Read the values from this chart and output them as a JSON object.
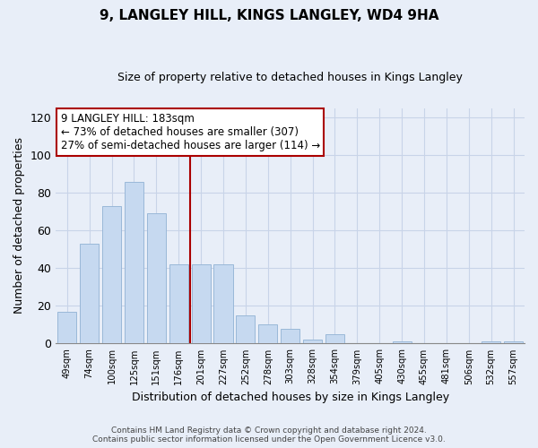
{
  "title": "9, LANGLEY HILL, KINGS LANGLEY, WD4 9HA",
  "subtitle": "Size of property relative to detached houses in Kings Langley",
  "xlabel": "Distribution of detached houses by size in Kings Langley",
  "ylabel": "Number of detached properties",
  "bar_labels": [
    "49sqm",
    "74sqm",
    "100sqm",
    "125sqm",
    "151sqm",
    "176sqm",
    "201sqm",
    "227sqm",
    "252sqm",
    "278sqm",
    "303sqm",
    "328sqm",
    "354sqm",
    "379sqm",
    "405sqm",
    "430sqm",
    "455sqm",
    "481sqm",
    "506sqm",
    "532sqm",
    "557sqm"
  ],
  "bar_values": [
    17,
    53,
    73,
    86,
    69,
    42,
    42,
    42,
    15,
    10,
    8,
    2,
    5,
    0,
    0,
    1,
    0,
    0,
    0,
    1,
    1
  ],
  "bar_color": "#c6d9f0",
  "bar_edge_color": "#9ab8d8",
  "vline_x": 5.5,
  "vline_color": "#aa0000",
  "annotation_title": "9 LANGLEY HILL: 183sqm",
  "annotation_line1": "← 73% of detached houses are smaller (307)",
  "annotation_line2": "27% of semi-detached houses are larger (114) →",
  "annotation_box_color": "#ffffff",
  "annotation_border_color": "#aa0000",
  "ylim": [
    0,
    125
  ],
  "yticks": [
    0,
    20,
    40,
    60,
    80,
    100,
    120
  ],
  "footer_line1": "Contains HM Land Registry data © Crown copyright and database right 2024.",
  "footer_line2": "Contains public sector information licensed under the Open Government Licence v3.0.",
  "bg_color": "#e8eef8",
  "grid_color": "#c8d4e8",
  "title_fontsize": 11,
  "subtitle_fontsize": 9
}
